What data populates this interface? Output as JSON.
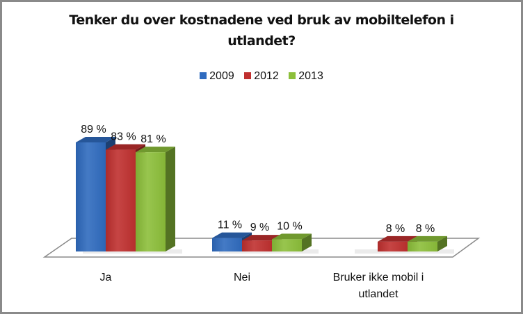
{
  "chart_data": {
    "type": "bar",
    "title": "Tenker du over kostnadene ved bruk av mobiltelefon i utlandet?",
    "title_lines": [
      "Tenker du over kostnadene ved bruk av mobiltelefon i",
      "utlandet?"
    ],
    "categories": [
      "Ja",
      "Nei",
      "Bruker ikke mobil i utlandet"
    ],
    "category_lines": [
      [
        "Ja"
      ],
      [
        "Nei"
      ],
      [
        "Bruker ikke mobil i",
        "utlandet"
      ]
    ],
    "series": [
      {
        "name": "2009",
        "values": [
          89,
          11,
          null
        ],
        "labels": [
          "89 %",
          "11 %",
          ""
        ],
        "color": "#2f6bbf"
      },
      {
        "name": "2012",
        "values": [
          83,
          9,
          8
        ],
        "labels": [
          "83 %",
          "9 %",
          "8 %"
        ],
        "color": "#c0302f"
      },
      {
        "name": "2013",
        "values": [
          81,
          10,
          8
        ],
        "labels": [
          "81 %",
          "10 %",
          "8 %"
        ],
        "color": "#8cbf3a"
      }
    ],
    "xlabel": "",
    "ylabel": "",
    "ylim": [
      0,
      100
    ],
    "grid": false,
    "legend": "top",
    "style": "3d-column"
  }
}
